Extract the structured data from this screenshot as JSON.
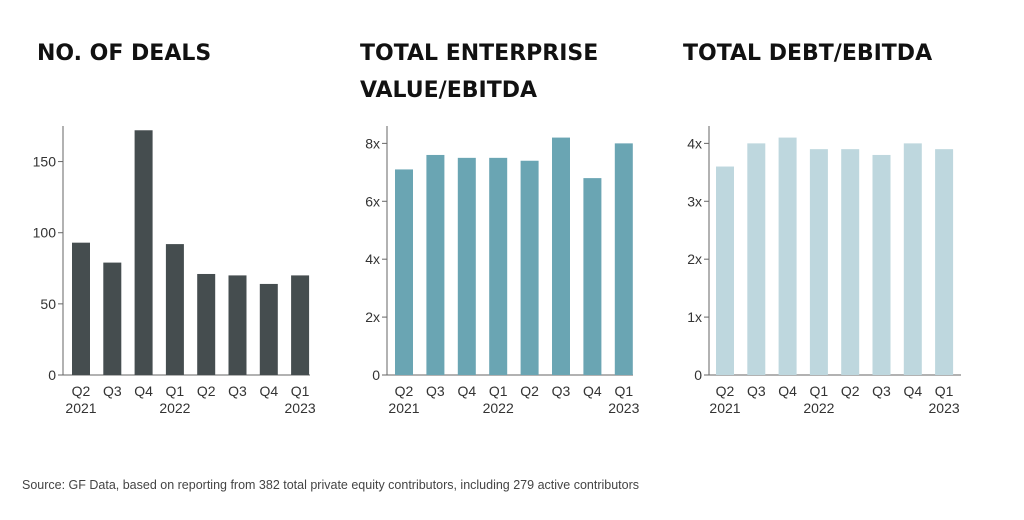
{
  "chart_data": [
    {
      "type": "bar",
      "title": "NO. OF DEALS",
      "categories": [
        "Q2\n2021",
        "Q3",
        "Q4",
        "Q1\n2022",
        "Q2",
        "Q3",
        "Q4",
        "Q1\n2023"
      ],
      "values": [
        93,
        79,
        172,
        92,
        71,
        70,
        64,
        70
      ],
      "yticks": [
        0,
        50,
        100,
        150
      ],
      "ytick_labels": [
        "0",
        "50",
        "100",
        "150"
      ],
      "ylim": [
        0,
        175
      ],
      "color": "#454d4f"
    },
    {
      "type": "bar",
      "title": "TOTAL ENTERPRISE VALUE/EBITDA",
      "categories": [
        "Q2\n2021",
        "Q3",
        "Q4",
        "Q1\n2022",
        "Q2",
        "Q3",
        "Q4",
        "Q1\n2023"
      ],
      "values": [
        7.1,
        7.6,
        7.5,
        7.5,
        7.4,
        8.2,
        6.8,
        8.0
      ],
      "yticks": [
        0,
        2,
        4,
        6,
        8
      ],
      "ytick_labels": [
        "0",
        "2x",
        "4x",
        "6x",
        "8x"
      ],
      "ylim": [
        0,
        8.6
      ],
      "color": "#6aa5b3"
    },
    {
      "type": "bar",
      "title": "TOTAL DEBT/EBITDA",
      "categories": [
        "Q2\n2021",
        "Q3",
        "Q4",
        "Q1\n2022",
        "Q2",
        "Q3",
        "Q4",
        "Q1\n2023"
      ],
      "values": [
        3.6,
        4.0,
        4.1,
        3.9,
        3.9,
        3.8,
        4.0,
        3.9
      ],
      "yticks": [
        0,
        1,
        2,
        3,
        4
      ],
      "ytick_labels": [
        "0",
        "1x",
        "2x",
        "3x",
        "4x"
      ],
      "ylim": [
        0,
        4.3
      ],
      "color": "#bed7de"
    }
  ],
  "source": "Source: GF Data, based on reporting from 382 total private equity contributors, including 279 active contributors"
}
